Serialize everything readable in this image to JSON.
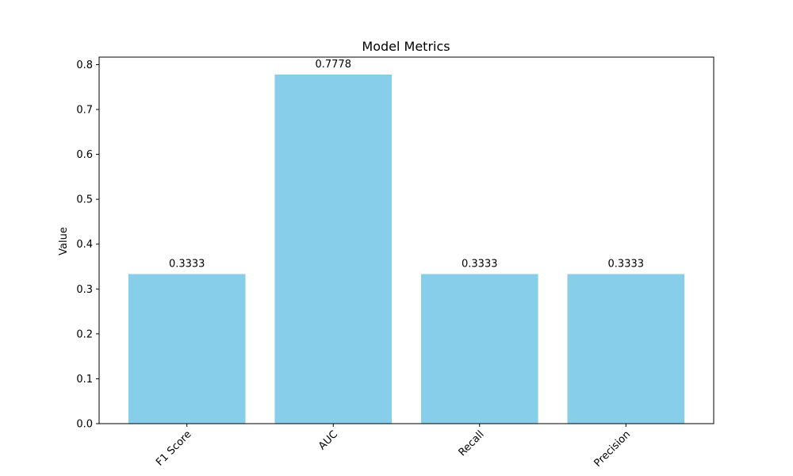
{
  "chart_data": {
    "type": "bar",
    "title": "Model Metrics",
    "xlabel": "",
    "ylabel": "Value",
    "categories": [
      "F1 Score",
      "AUC",
      "Recall",
      "Precision"
    ],
    "values": [
      0.3333,
      0.7778,
      0.3333,
      0.3333
    ],
    "data_labels": [
      "0.3333",
      "0.7778",
      "0.3333",
      "0.3333"
    ],
    "ylim": [
      0,
      0.8167
    ],
    "yticks": [
      0.0,
      0.1,
      0.2,
      0.3,
      0.4,
      0.5,
      0.6,
      0.7,
      0.8
    ],
    "ytick_labels": [
      "0.0",
      "0.1",
      "0.2",
      "0.3",
      "0.4",
      "0.5",
      "0.6",
      "0.7",
      "0.8"
    ],
    "xtick_rotation_deg": 45,
    "grid": false,
    "bar_color": "#87ceeb",
    "axis_color": "#000000"
  }
}
